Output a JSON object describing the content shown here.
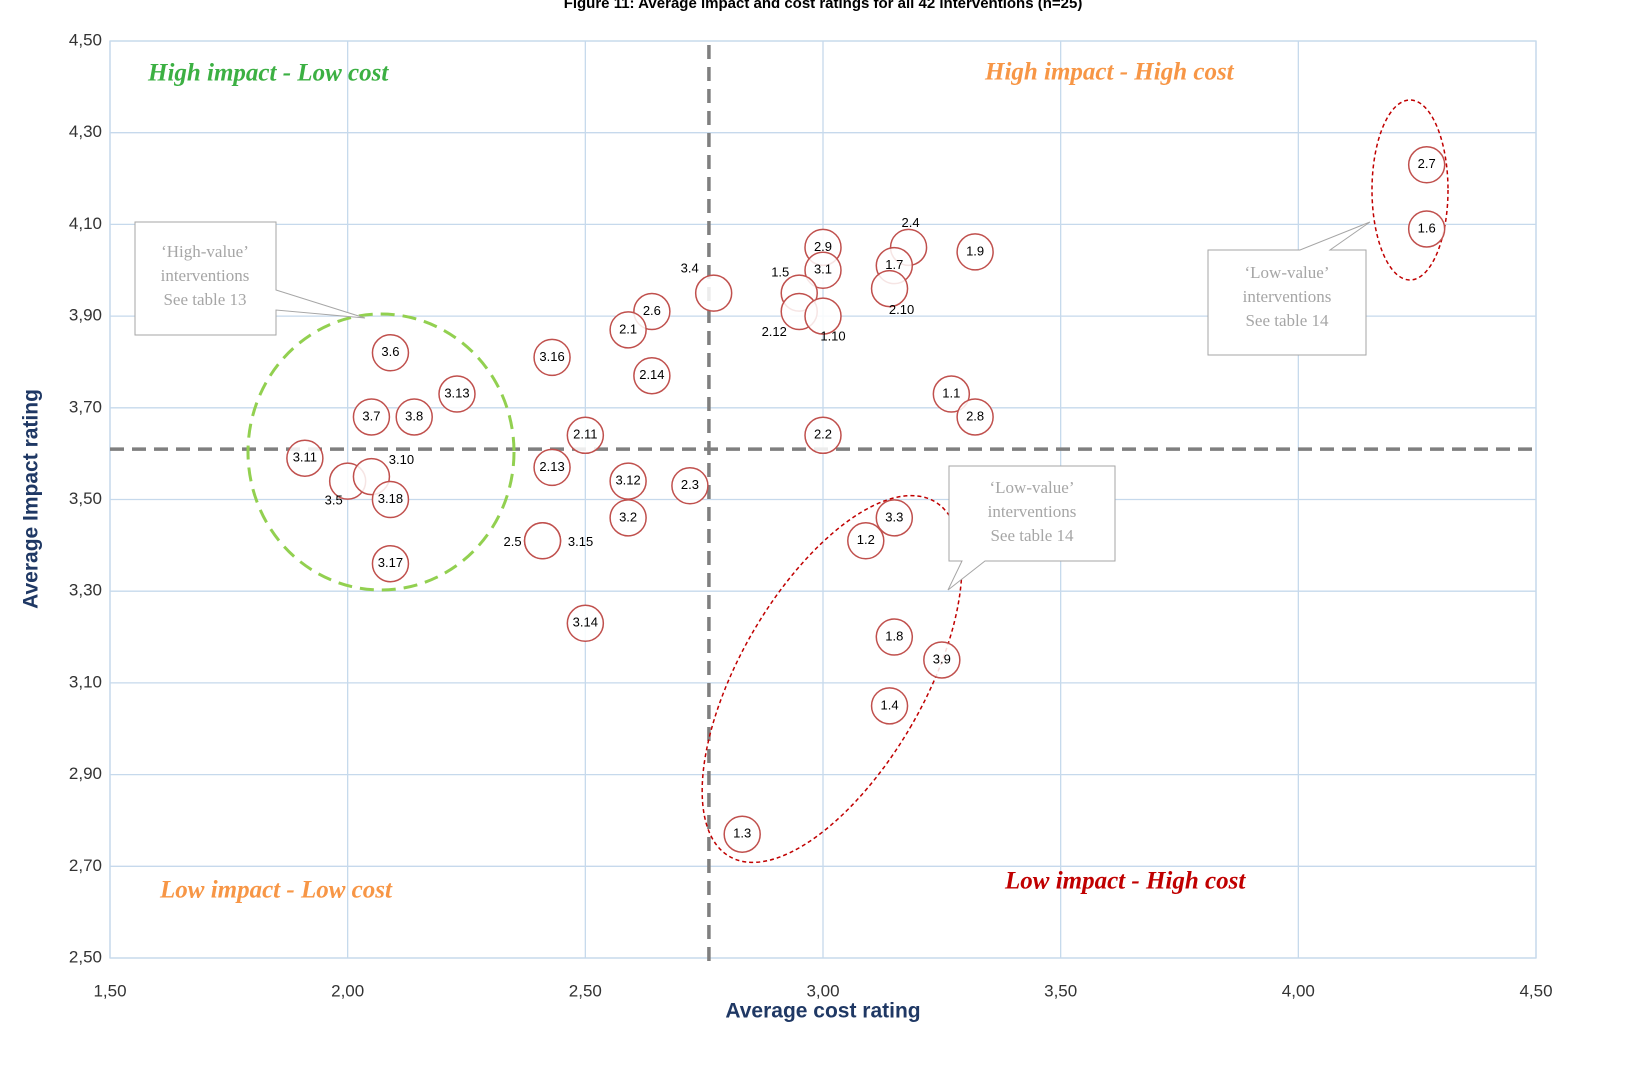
{
  "chart_data": {
    "type": "scatter",
    "title": "Figure 11: Average impact and cost ratings for all 42 interventions (n=25)",
    "x_label": "Average cost rating",
    "y_label": "Average Impact rating",
    "xlim": [
      1.5,
      4.5
    ],
    "ylim": [
      2.5,
      4.5
    ],
    "xticks": [
      {
        "value": 1.5,
        "label": "1,50"
      },
      {
        "value": 2,
        "label": "2,00"
      },
      {
        "value": 2.5,
        "label": "2,50"
      },
      {
        "value": 3,
        "label": "3,00"
      },
      {
        "value": 3.5,
        "label": "3,50"
      },
      {
        "value": 4,
        "label": "4,00"
      },
      {
        "value": 4.5,
        "label": "4,50"
      }
    ],
    "yticks": [
      {
        "value": 2.5,
        "label": "2,50"
      },
      {
        "value": 2.7,
        "label": "2,70"
      },
      {
        "value": 2.9,
        "label": "2,90"
      },
      {
        "value": 3.1,
        "label": "3,10"
      },
      {
        "value": 3.3,
        "label": "3,30"
      },
      {
        "value": 3.5,
        "label": "3,50"
      },
      {
        "value": 3.7,
        "label": "3,70"
      },
      {
        "value": 3.9,
        "label": "3,90"
      },
      {
        "value": 4.1,
        "label": "4,10"
      },
      {
        "value": 4.3,
        "label": "4,30"
      },
      {
        "value": 4.5,
        "label": "4,50"
      }
    ],
    "grid": true,
    "reference_lines": {
      "x": 2.76,
      "y": 3.61
    },
    "color": "#c0504d",
    "points": {
      "labels": [
        "2.7",
        "1.6",
        "1.9",
        "2.4",
        "2.9",
        "3.1",
        "1.7",
        "1.5",
        "2.10",
        "2.12",
        "1.10",
        "3.4",
        "2.6",
        "2.1",
        "3.16",
        "2.14",
        "3.6",
        "3.13",
        "3.7",
        "3.8",
        "3.11",
        "3.5",
        "3.10",
        "3.18",
        "3.17",
        "2.11",
        "2.13",
        "3.12",
        "2.3",
        "3.2",
        "2.5",
        "3.15",
        "3.14",
        "2.2",
        "1.1",
        "2.8",
        "3.3",
        "1.2",
        "1.8",
        "3.9",
        "1.4",
        "1.3"
      ],
      "x": [
        4.27,
        4.27,
        3.32,
        3.18,
        3.0,
        3.0,
        3.15,
        2.95,
        3.14,
        2.95,
        3.0,
        2.77,
        2.64,
        2.59,
        2.43,
        2.64,
        2.09,
        2.23,
        2.05,
        2.14,
        1.91,
        2.0,
        2.05,
        2.09,
        2.09,
        2.5,
        2.43,
        2.59,
        2.72,
        2.59,
        2.41,
        2.41,
        2.5,
        3.0,
        3.27,
        3.32,
        3.15,
        3.09,
        3.15,
        3.25,
        3.14,
        2.83
      ],
      "y": [
        4.23,
        4.09,
        4.04,
        4.05,
        4.05,
        4.0,
        4.01,
        3.95,
        3.96,
        3.91,
        3.9,
        3.95,
        3.91,
        3.87,
        3.81,
        3.77,
        3.82,
        3.73,
        3.68,
        3.68,
        3.59,
        3.54,
        3.55,
        3.5,
        3.36,
        3.64,
        3.57,
        3.54,
        3.53,
        3.46,
        3.41,
        3.41,
        3.23,
        3.64,
        3.73,
        3.68,
        3.46,
        3.41,
        3.2,
        3.15,
        3.05,
        2.77
      ]
    },
    "annotations": [
      {
        "text": "High impact - Low cost",
        "color": "#3cb043"
      },
      {
        "text": "High impact - High cost",
        "color": "#f79646"
      },
      {
        "text": "Low impact - Low cost",
        "color": "#f79646"
      },
      {
        "text": "Low impact - High cost",
        "color": "#c00000"
      }
    ],
    "callouts": [
      {
        "lines": [
          "‘High-value’",
          "interventions",
          "See table 13"
        ]
      },
      {
        "lines": [
          "‘Low-value’",
          "interventions",
          "See table 14"
        ]
      },
      {
        "lines": [
          "‘Low-value’",
          "interventions",
          "See table 14"
        ]
      }
    ]
  }
}
